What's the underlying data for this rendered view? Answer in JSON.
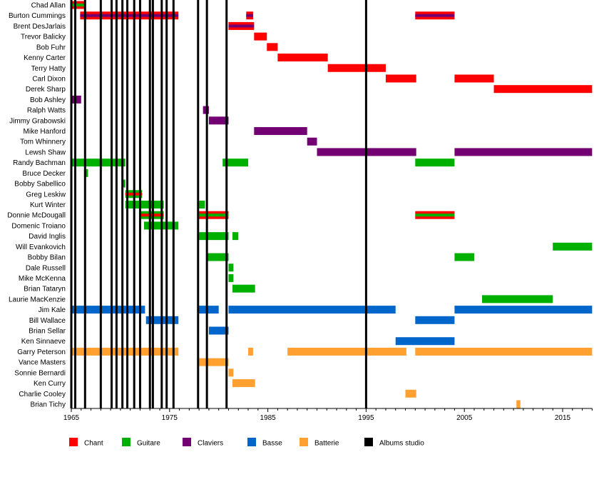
{
  "chart_data": {
    "type": "timeline",
    "title": "",
    "xlabel": "",
    "ylabel": "",
    "xlim": [
      1965,
      2018
    ],
    "x_ticks": [
      1965,
      1975,
      1985,
      1995,
      2005,
      2015
    ],
    "legend_placement": "bottom",
    "roles": {
      "chant": {
        "label": "Chant",
        "color": "#FF0000"
      },
      "guitare": {
        "label": "Guitare",
        "color": "#00B000"
      },
      "claviers": {
        "label": "Claviers",
        "color": "#730073"
      },
      "basse": {
        "label": "Basse",
        "color": "#0066CC"
      },
      "batterie": {
        "label": "Batterie",
        "color": "#FFA030"
      },
      "albums": {
        "label": "Albums studio",
        "color": "#000000"
      }
    },
    "legend_order": [
      "chant",
      "guitare",
      "claviers",
      "basse",
      "batterie",
      "albums"
    ],
    "studio_albums": [
      1965.0,
      1965.4,
      1966.4,
      1968.0,
      1969.1,
      1969.6,
      1970.2,
      1970.7,
      1971.4,
      1972.0,
      1973.0,
      1973.3,
      1974.2,
      1974.7,
      1975.4,
      1977.9,
      1978.8,
      1980.8,
      1995.0
    ],
    "members": [
      {
        "name": "Chad Allan",
        "periods": [
          [
            1965.0,
            1966.3,
            "chant",
            "guitare"
          ]
        ]
      },
      {
        "name": "Burton Cummings",
        "periods": [
          [
            1965.9,
            1975.9,
            "chant",
            "claviers"
          ],
          [
            1982.8,
            1983.5,
            "chant",
            "claviers"
          ],
          [
            2000.0,
            2004.0,
            "chant",
            "claviers"
          ]
        ]
      },
      {
        "name": "Brent DesJarlais",
        "periods": [
          [
            1981.0,
            1983.6,
            "chant",
            "claviers"
          ]
        ]
      },
      {
        "name": "Trevor Balicky",
        "periods": [
          [
            1983.6,
            1984.9,
            "chant"
          ]
        ]
      },
      {
        "name": "Bob Fuhr",
        "periods": [
          [
            1984.9,
            1986.0,
            "chant"
          ]
        ]
      },
      {
        "name": "Kenny Carter",
        "periods": [
          [
            1986.0,
            1991.1,
            "chant"
          ]
        ]
      },
      {
        "name": "Terry Hatty",
        "periods": [
          [
            1991.1,
            1997.0,
            "chant"
          ]
        ]
      },
      {
        "name": "Carl Dixon",
        "periods": [
          [
            1997.0,
            2000.1,
            "chant"
          ],
          [
            2004.0,
            2008.0,
            "chant"
          ]
        ]
      },
      {
        "name": "Derek Sharp",
        "periods": [
          [
            2008.0,
            2018.0,
            "chant"
          ]
        ]
      },
      {
        "name": "Bob Ashley",
        "periods": [
          [
            1965.0,
            1966.0,
            "claviers"
          ]
        ]
      },
      {
        "name": "Ralph Watts",
        "periods": [
          [
            1978.4,
            1979.0,
            "claviers"
          ]
        ]
      },
      {
        "name": "Jimmy Grabowski",
        "periods": [
          [
            1979.0,
            1981.0,
            "claviers"
          ]
        ]
      },
      {
        "name": "Mike Hanford",
        "periods": [
          [
            1983.6,
            1989.0,
            "claviers"
          ]
        ]
      },
      {
        "name": "Tom Whinnery",
        "periods": [
          [
            1989.0,
            1990.0,
            "claviers"
          ]
        ]
      },
      {
        "name": "Lewsh Shaw",
        "periods": [
          [
            1990.0,
            2000.1,
            "claviers"
          ],
          [
            2004.0,
            2018.0,
            "claviers"
          ]
        ]
      },
      {
        "name": "Randy Bachman",
        "periods": [
          [
            1965.0,
            1970.5,
            "guitare"
          ],
          [
            1980.4,
            1983.0,
            "guitare"
          ],
          [
            2000.0,
            2004.0,
            "guitare"
          ]
        ]
      },
      {
        "name": "Bruce Decker",
        "periods": [
          [
            1966.3,
            1966.7,
            "guitare"
          ]
        ]
      },
      {
        "name": "Bobby Sabellico",
        "periods": [
          [
            1970.2,
            1970.5,
            "guitare"
          ]
        ]
      },
      {
        "name": "Greg Leskiw",
        "periods": [
          [
            1970.5,
            1972.2,
            "guitare",
            "chant"
          ]
        ]
      },
      {
        "name": "Kurt Winter",
        "periods": [
          [
            1970.5,
            1974.4,
            "guitare"
          ],
          [
            1978.0,
            1978.6,
            "guitare"
          ]
        ]
      },
      {
        "name": "Donnie McDougall",
        "periods": [
          [
            1972.1,
            1974.4,
            "guitare",
            "chant"
          ],
          [
            1978.0,
            1981.0,
            "chant",
            "guitare"
          ],
          [
            2000.0,
            2004.0,
            "chant",
            "guitare"
          ]
        ]
      },
      {
        "name": "Domenic Troiano",
        "periods": [
          [
            1972.4,
            1975.9,
            "guitare"
          ]
        ]
      },
      {
        "name": "David Inglis",
        "periods": [
          [
            1978.0,
            1981.0,
            "guitare"
          ],
          [
            1981.4,
            1982.0,
            "guitare"
          ]
        ]
      },
      {
        "name": "Will Evankovich",
        "periods": [
          [
            2014.0,
            2018.0,
            "guitare"
          ]
        ]
      },
      {
        "name": "Bobby Bilan",
        "periods": [
          [
            1978.9,
            1981.0,
            "guitare"
          ],
          [
            2004.0,
            2006.0,
            "guitare"
          ]
        ]
      },
      {
        "name": "Dale Russell",
        "periods": [
          [
            1981.0,
            1981.5,
            "guitare"
          ]
        ]
      },
      {
        "name": "Mike McKenna",
        "periods": [
          [
            1981.0,
            1981.5,
            "guitare"
          ]
        ]
      },
      {
        "name": "Brian Tataryn",
        "periods": [
          [
            1981.4,
            1983.7,
            "guitare"
          ]
        ]
      },
      {
        "name": "Laurie MacKenzie",
        "periods": [
          [
            2006.8,
            2014.0,
            "guitare"
          ]
        ]
      },
      {
        "name": "Jim Kale",
        "periods": [
          [
            1965.0,
            1972.5,
            "basse"
          ],
          [
            1978.0,
            1980.0,
            "basse"
          ],
          [
            1981.0,
            1998.0,
            "basse"
          ],
          [
            2004.0,
            2018.0,
            "basse"
          ]
        ]
      },
      {
        "name": "Bill Wallace",
        "periods": [
          [
            1972.6,
            1975.9,
            "basse"
          ],
          [
            2000.0,
            2004.0,
            "basse"
          ]
        ]
      },
      {
        "name": "Brian Sellar",
        "periods": [
          [
            1979.0,
            1981.0,
            "basse"
          ]
        ]
      },
      {
        "name": "Ken Sinnaeve",
        "periods": [
          [
            1998.0,
            2004.0,
            "basse"
          ]
        ]
      },
      {
        "name": "Garry Peterson",
        "periods": [
          [
            1965.0,
            1975.9,
            "batterie"
          ],
          [
            1983.0,
            1983.5,
            "batterie"
          ],
          [
            1987.0,
            1999.1,
            "batterie"
          ],
          [
            2000.0,
            2018.0,
            "batterie"
          ]
        ]
      },
      {
        "name": "Vance Masters",
        "periods": [
          [
            1978.0,
            1981.0,
            "batterie"
          ]
        ]
      },
      {
        "name": "Sonnie Bernardi",
        "periods": [
          [
            1981.0,
            1981.5,
            "batterie"
          ]
        ]
      },
      {
        "name": "Ken Curry",
        "periods": [
          [
            1981.4,
            1983.7,
            "batterie"
          ]
        ]
      },
      {
        "name": "Charlie Cooley",
        "periods": [
          [
            1999.0,
            2000.1,
            "batterie"
          ]
        ]
      },
      {
        "name": "Brian Tichy",
        "periods": [
          [
            2010.3,
            2010.7,
            "batterie"
          ]
        ]
      }
    ]
  }
}
